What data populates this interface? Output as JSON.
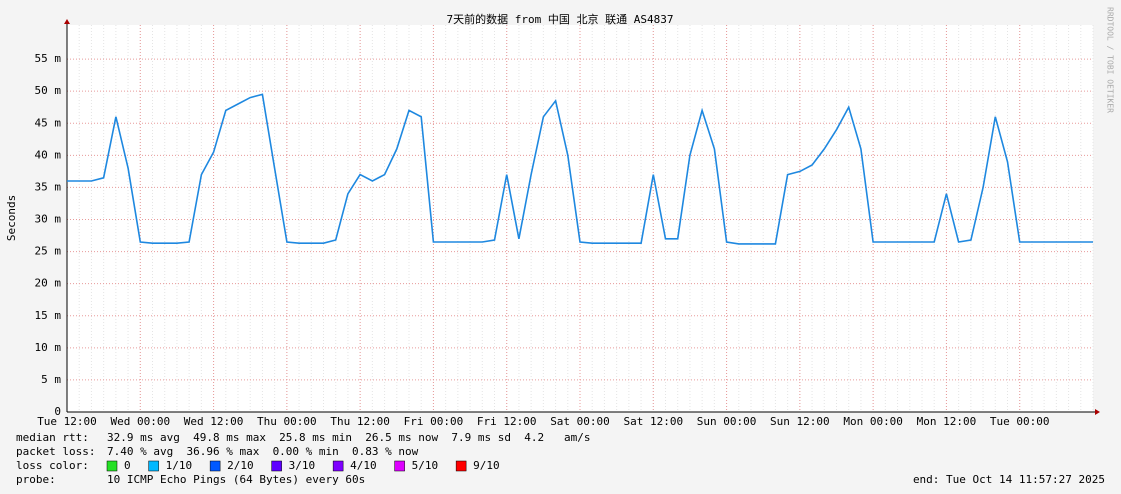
{
  "chart_data": {
    "type": "line",
    "title": "7天前的数据 from 中国 北京 联通 AS4837",
    "y_label": "Seconds",
    "side_note": "RRDTOOL / TOBI OETIKER",
    "categories": [
      "Tue 12:00",
      null,
      null,
      null,
      null,
      null,
      "Wed 00:00",
      null,
      null,
      null,
      null,
      null,
      "Wed 12:00",
      null,
      null,
      null,
      null,
      null,
      "Thu 00:00",
      null,
      null,
      null,
      null,
      null,
      "Thu 12:00",
      null,
      null,
      null,
      null,
      null,
      "Fri 00:00",
      null,
      null,
      null,
      null,
      null,
      "Fri 12:00",
      null,
      null,
      null,
      null,
      null,
      "Sat 00:00",
      null,
      null,
      null,
      null,
      null,
      "Sat 12:00",
      null,
      null,
      null,
      null,
      null,
      "Sun 00:00",
      null,
      null,
      null,
      null,
      null,
      "Sun 12:00",
      null,
      null,
      null,
      null,
      null,
      "Mon 00:00",
      null,
      null,
      null,
      null,
      null,
      "Mon 12:00",
      null,
      null,
      null,
      null,
      null,
      "Tue 00:00",
      null,
      null,
      null,
      null,
      null,
      null
    ],
    "series": [
      {
        "name": "median rtt",
        "color": "#1e88e0",
        "values": [
          36,
          36,
          36,
          36.5,
          46,
          38,
          26.5,
          26.3,
          26.3,
          26.3,
          26.5,
          37,
          40.5,
          47,
          48,
          49,
          49.5,
          38,
          26.5,
          26.3,
          26.3,
          26.3,
          26.8,
          34,
          37,
          36,
          37,
          41,
          47,
          46,
          26.5,
          26.5,
          26.5,
          26.5,
          26.5,
          26.8,
          37,
          27,
          37,
          46,
          48.5,
          40,
          26.5,
          26.3,
          26.3,
          26.3,
          26.3,
          26.3,
          37,
          27,
          27,
          40,
          47,
          41,
          26.5,
          26.2,
          26.2,
          26.2,
          26.2,
          37,
          37.5,
          38.5,
          41,
          44,
          47.5,
          41,
          26.5,
          26.5,
          26.5,
          26.5,
          26.5,
          26.5,
          34,
          26.5,
          26.8,
          35,
          46,
          39,
          26.5,
          26.5,
          26.5,
          26.5,
          26.5,
          26.5,
          26.5
        ]
      }
    ],
    "ylim": [
      0,
      60
    ],
    "yticks": [
      0,
      {
        "value": 5,
        "label": "5 m"
      },
      {
        "value": 10,
        "label": "10 m"
      },
      {
        "value": 15,
        "label": "15 m"
      },
      {
        "value": 20,
        "label": "20 m"
      },
      {
        "value": 25,
        "label": "25 m"
      },
      {
        "value": 30,
        "label": "30 m"
      },
      {
        "value": 35,
        "label": "35 m"
      },
      {
        "value": 40,
        "label": "40 m"
      },
      {
        "value": 45,
        "label": "45 m"
      },
      {
        "value": 50,
        "label": "50 m"
      },
      {
        "value": 55,
        "label": "55 m"
      }
    ],
    "grid": true,
    "stats": [
      {
        "label": "median rtt:",
        "text": "32.9 ms avg  49.8 ms max  25.8 ms min  26.5 ms now  7.9 ms sd  4.2   am/s"
      },
      {
        "label": "packet loss:",
        "text": "7.40 % avg  36.96 % max  0.00 % min  0.83 % now"
      }
    ],
    "loss_legend_label": "loss color:",
    "loss_colors": [
      {
        "label": "0",
        "color": "#26e026"
      },
      {
        "label": "1/10",
        "color": "#00b8ff"
      },
      {
        "label": "2/10",
        "color": "#0059ff"
      },
      {
        "label": "3/10",
        "color": "#5e00ff"
      },
      {
        "label": "4/10",
        "color": "#7e00ff"
      },
      {
        "label": "5/10",
        "color": "#dd00ff"
      },
      {
        "label": "9/10",
        "color": "#ff0000"
      }
    ],
    "probe_label": "probe:",
    "probe": "10 ICMP Echo Pings (64 Bytes) every 60s",
    "end": "end: Tue Oct 14 11:57:27 2025"
  }
}
